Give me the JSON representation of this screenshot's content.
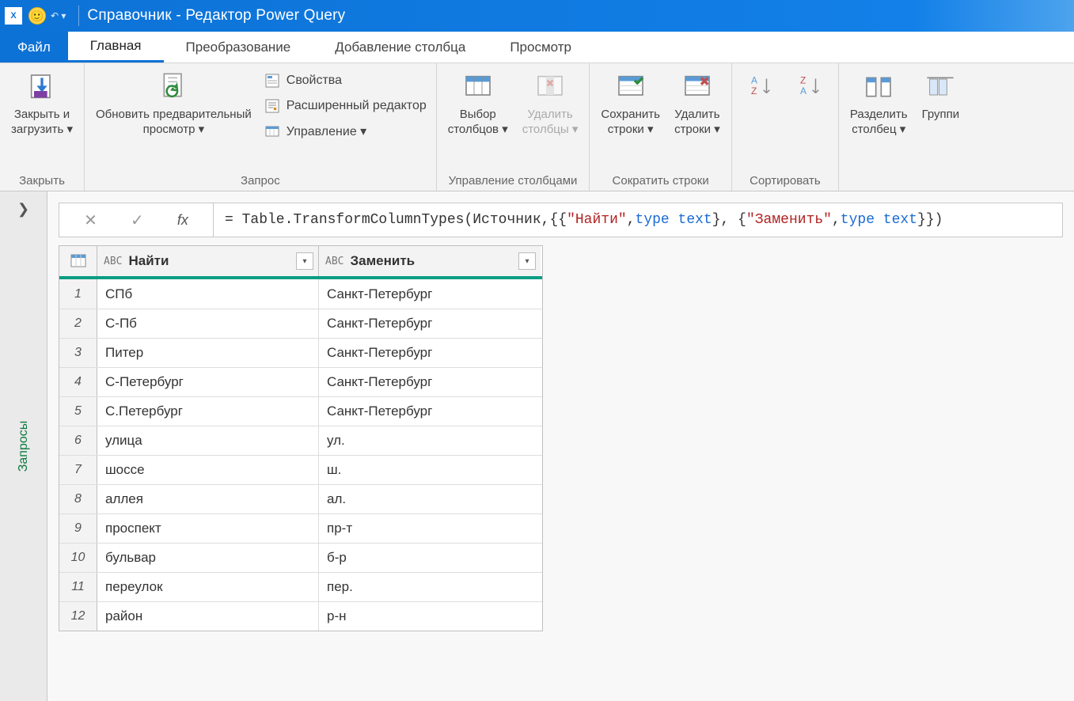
{
  "window": {
    "title": "Справочник - Редактор Power Query"
  },
  "tabs": {
    "file": "Файл",
    "items": [
      "Главная",
      "Преобразование",
      "Добавление столбца",
      "Просмотр"
    ],
    "active_index": 0
  },
  "ribbon": {
    "close": {
      "label": "Закрыть и\nзагрузить ▾",
      "group": "Закрыть"
    },
    "refresh": {
      "label": "Обновить предварительный\nпросмотр ▾"
    },
    "props": {
      "label": "Свойства"
    },
    "adv_editor": {
      "label": "Расширенный редактор"
    },
    "manage": {
      "label": "Управление ▾"
    },
    "query_group": "Запрос",
    "choose_cols": {
      "label": "Выбор\nстолбцов ▾"
    },
    "remove_cols": {
      "label": "Удалить\nстолбцы ▾"
    },
    "cols_group": "Управление столбцами",
    "keep_rows": {
      "label": "Сохранить\nстроки ▾"
    },
    "remove_rows": {
      "label": "Удалить\nстроки ▾"
    },
    "rows_group": "Сократить строки",
    "sort_group": "Сортировать",
    "split": {
      "label": "Разделить\nстолбец ▾"
    },
    "group_by": {
      "label": "Группи"
    }
  },
  "sidebar": {
    "label": "Запросы"
  },
  "formula": {
    "prefix": "= Table.TransformColumnTypes(Источник,{{",
    "s1": "\"Найти\"",
    "mid1": ", ",
    "kw1": "type text",
    "mid2": "}, {",
    "s2": "\"Заменить\"",
    "mid3": ", ",
    "kw2": "type text",
    "suffix": "}})"
  },
  "table": {
    "columns": [
      {
        "name": "Найти",
        "type": "ABC"
      },
      {
        "name": "Заменить",
        "type": "ABC"
      }
    ],
    "rows": [
      [
        "СПб",
        "Санкт-Петербург"
      ],
      [
        "С-Пб",
        "Санкт-Петербург"
      ],
      [
        "Питер",
        "Санкт-Петербург"
      ],
      [
        "С-Петербург",
        "Санкт-Петербург"
      ],
      [
        "С.Петербург",
        "Санкт-Петербург"
      ],
      [
        "улица",
        "ул."
      ],
      [
        "шоссе",
        "ш."
      ],
      [
        "аллея",
        "ал."
      ],
      [
        "проспект",
        "пр-т"
      ],
      [
        "бульвар",
        "б-р"
      ],
      [
        "переулок",
        "пер."
      ],
      [
        "район",
        "р-н"
      ]
    ]
  },
  "colors": {
    "titlebar": "#0d72d6",
    "accent_teal": "#0a9d84",
    "ribbon_bg": "#f3f3f3"
  }
}
